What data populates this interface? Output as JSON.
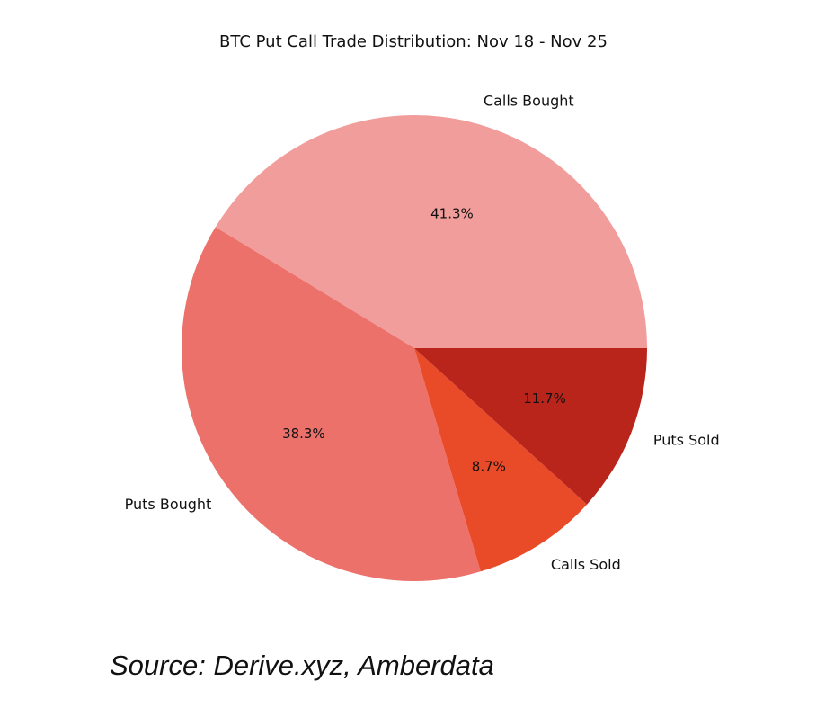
{
  "chart_data": {
    "type": "pie",
    "title": "BTC Put Call Trade Distribution: Nov 18 - Nov 25",
    "slices": [
      {
        "label": "Calls Bought",
        "value": 41.3,
        "pct_label": "41.3%",
        "color": "#f19d9b"
      },
      {
        "label": "Puts Bought",
        "value": 38.3,
        "pct_label": "38.3%",
        "color": "#ec716b"
      },
      {
        "label": "Calls Sold",
        "value": 8.7,
        "pct_label": "8.7%",
        "color": "#e94a27"
      },
      {
        "label": "Puts Sold",
        "value": 11.7,
        "pct_label": "11.7%",
        "color": "#b9241b"
      }
    ],
    "start_angle_deg": 0,
    "direction": "counterclockwise",
    "legend": "none"
  },
  "source_note": "Source: Derive.xyz, Amberdata"
}
